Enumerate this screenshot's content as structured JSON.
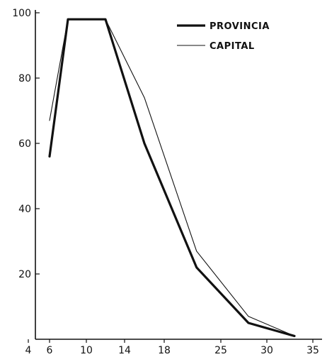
{
  "chart_data": {
    "type": "line",
    "title": "",
    "xlabel": "",
    "ylabel": "",
    "x_ticks": [
      "4",
      "6",
      "10",
      "14",
      "18",
      "25",
      "30",
      "35"
    ],
    "y_ticks": [
      "20",
      "40",
      "60",
      "80",
      "100"
    ],
    "ylim": [
      0,
      100
    ],
    "grid": false,
    "legend_position": "top-right",
    "series": [
      {
        "name": "PROVINCIA",
        "style": "thick",
        "color": "#111111",
        "points": [
          {
            "x": "6",
            "y": 56
          },
          {
            "x": "8",
            "y": 98
          },
          {
            "x": "12",
            "y": 98
          },
          {
            "x": "16",
            "y": 60
          },
          {
            "x": "22",
            "y": 22
          },
          {
            "x": "28",
            "y": 5
          },
          {
            "x": "33",
            "y": 1
          }
        ]
      },
      {
        "name": "CAPITAL",
        "style": "thin",
        "color": "#111111",
        "points": [
          {
            "x": "6",
            "y": 67
          },
          {
            "x": "8",
            "y": 98
          },
          {
            "x": "12",
            "y": 98
          },
          {
            "x": "16",
            "y": 74
          },
          {
            "x": "22",
            "y": 27
          },
          {
            "x": "28",
            "y": 7
          },
          {
            "x": "33",
            "y": 1
          }
        ]
      }
    ]
  }
}
